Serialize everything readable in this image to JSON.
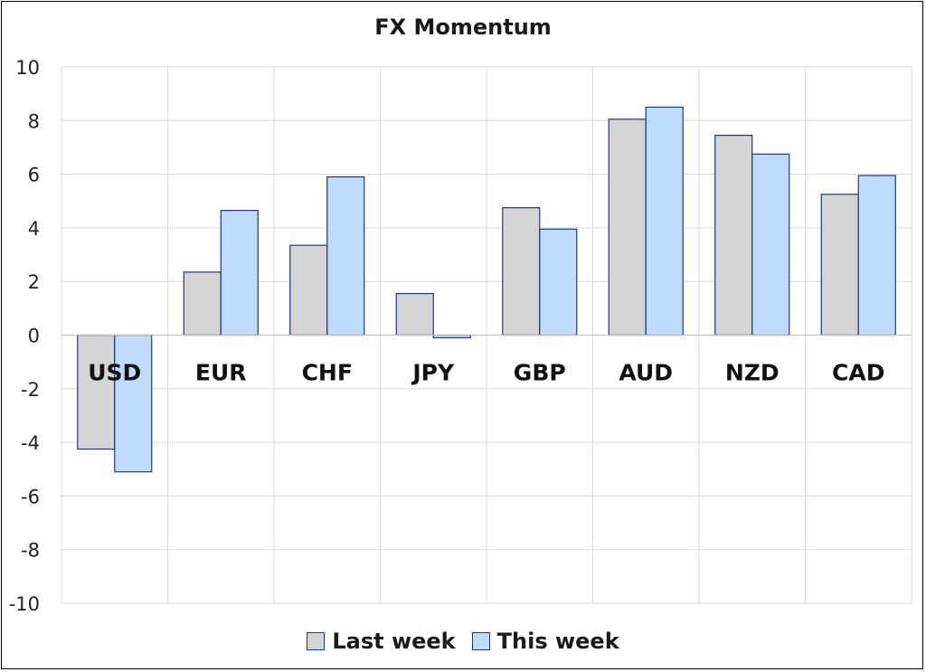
{
  "chart_data": {
    "type": "bar",
    "title": "FX Momentum",
    "xlabel": "",
    "ylabel": "",
    "categories": [
      "USD",
      "EUR",
      "CHF",
      "JPY",
      "GBP",
      "AUD",
      "NZD",
      "CAD"
    ],
    "series": [
      {
        "name": "Last week",
        "values": [
          -4.25,
          2.35,
          3.35,
          1.55,
          4.75,
          8.05,
          7.45,
          5.25
        ],
        "color": "#d4d4d4"
      },
      {
        "name": "This week",
        "values": [
          -5.1,
          4.65,
          5.9,
          -0.1,
          3.95,
          8.5,
          6.75,
          5.95
        ],
        "color": "#bfdcff"
      }
    ],
    "ylim": [
      -10,
      10
    ],
    "yticks": [
      "10",
      "8",
      "6",
      "4",
      "2",
      "0",
      "-2",
      "-4",
      "-6",
      "-8",
      "-10"
    ],
    "grid": true,
    "legend_position": "bottom",
    "bar_border_color": "#1f3a7a"
  }
}
